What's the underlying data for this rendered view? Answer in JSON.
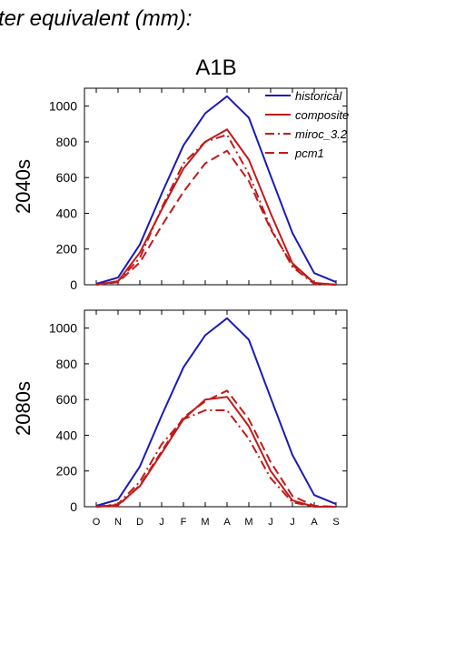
{
  "page_title": "ter equivalent (mm):",
  "chart_data": [
    {
      "type": "line",
      "title": "A1B",
      "ylabel": "2040s",
      "categories": [
        "O",
        "N",
        "D",
        "J",
        "F",
        "M",
        "A",
        "M",
        "J",
        "J",
        "A",
        "S"
      ],
      "ylim": [
        0,
        1100
      ],
      "yticks": [
        0,
        200,
        400,
        600,
        800,
        1000
      ],
      "legend": "top-right",
      "series": [
        {
          "name": "historical",
          "color": "#1a1ab8",
          "dash": "solid",
          "values": [
            5,
            40,
            225,
            510,
            780,
            960,
            1055,
            935,
            610,
            290,
            65,
            15
          ]
        },
        {
          "name": "composite",
          "color": "#c01a1a",
          "dash": "solid",
          "values": [
            0,
            20,
            180,
            420,
            650,
            800,
            870,
            700,
            400,
            120,
            10,
            0
          ]
        },
        {
          "name": "miroc_3.2",
          "color": "#c01a1a",
          "dash": "dashdot",
          "values": [
            0,
            20,
            150,
            430,
            680,
            800,
            840,
            620,
            320,
            100,
            5,
            0
          ]
        },
        {
          "name": "pcm1",
          "color": "#c01a1a",
          "dash": "dash",
          "values": [
            0,
            15,
            125,
            330,
            520,
            680,
            750,
            580,
            310,
            110,
            10,
            0
          ]
        }
      ]
    },
    {
      "type": "line",
      "title": "",
      "ylabel": "2080s",
      "categories": [
        "O",
        "N",
        "D",
        "J",
        "F",
        "M",
        "A",
        "M",
        "J",
        "J",
        "A",
        "S"
      ],
      "ylim": [
        0,
        1100
      ],
      "yticks": [
        0,
        200,
        400,
        600,
        800,
        1000
      ],
      "series": [
        {
          "name": "historical",
          "color": "#1a1ab8",
          "dash": "solid",
          "values": [
            5,
            40,
            225,
            510,
            780,
            960,
            1055,
            935,
            610,
            290,
            65,
            15
          ]
        },
        {
          "name": "composite",
          "color": "#c01a1a",
          "dash": "solid",
          "values": [
            0,
            10,
            115,
            300,
            490,
            600,
            615,
            450,
            200,
            35,
            0,
            0
          ]
        },
        {
          "name": "miroc_3.2",
          "color": "#c01a1a",
          "dash": "dashdot",
          "values": [
            0,
            15,
            140,
            350,
            490,
            540,
            540,
            380,
            160,
            25,
            0,
            0
          ]
        },
        {
          "name": "pcm1",
          "color": "#c01a1a",
          "dash": "dash",
          "values": [
            0,
            5,
            120,
            310,
            500,
            590,
            650,
            490,
            250,
            60,
            5,
            0
          ]
        }
      ]
    }
  ]
}
